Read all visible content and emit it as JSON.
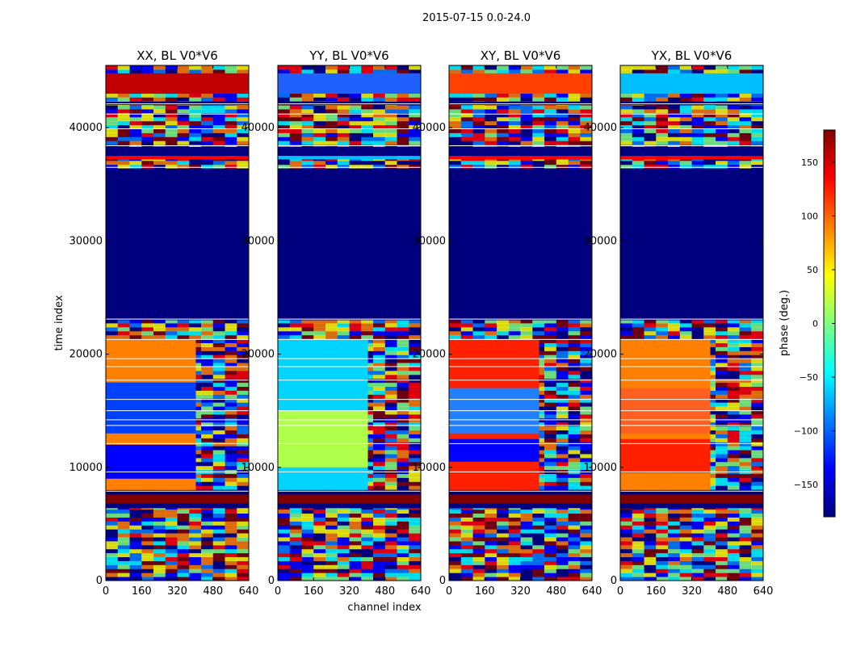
{
  "chart_data": {
    "type": "heatmap",
    "title": "2015-07-15 0.0-24.0",
    "xlabel": "channel index",
    "ylabel": "time index",
    "xlim": [
      0,
      640
    ],
    "ylim": [
      0,
      45500
    ],
    "x_ticks": [
      0,
      160,
      320,
      480,
      640
    ],
    "y_ticks": [
      0,
      10000,
      20000,
      30000,
      40000
    ],
    "colorbar": {
      "label": "phase (deg.)",
      "range": [
        -180,
        180
      ],
      "ticks": [
        150,
        100,
        50,
        0,
        -50,
        -100,
        -150
      ],
      "tick_labels": [
        "150",
        "100",
        "50",
        "0",
        "−50",
        "−100",
        "−150"
      ],
      "colormap": [
        "#00007f",
        "#0000ff",
        "#007fff",
        "#00ffff",
        "#7fff7f",
        "#ffff00",
        "#ff7f00",
        "#ff0000",
        "#7f0000"
      ]
    },
    "panels": [
      {
        "name": "XX, BL V0*V6",
        "fill_color": "#00007f",
        "bands": [
          {
            "y0": 23000,
            "y1": 36400,
            "color": "#00007f"
          },
          {
            "y0": 6800,
            "y1": 7600,
            "color": "#7f0000"
          },
          {
            "y0": 6400,
            "y1": 6800,
            "color": "#00007f"
          },
          {
            "y0": 7600,
            "y1": 8000,
            "color": "#00007f"
          },
          {
            "y0": 42000,
            "y1": 42300,
            "color": "#00007f"
          },
          {
            "y0": 37500,
            "y1": 38300,
            "color": "#00007f"
          },
          {
            "y0": 8000,
            "y1": 21300,
            "color": "#ff7f00"
          },
          {
            "y0": 13000,
            "y1": 17500,
            "color": "#0040ff"
          },
          {
            "y0": 9000,
            "y1": 12000,
            "color": "#0000ff"
          },
          {
            "y0": 43000,
            "y1": 44800,
            "color": "#c00000"
          },
          {
            "y0": 37200,
            "y1": 37500,
            "color": "#ff0000"
          }
        ]
      },
      {
        "name": "YY, BL V0*V6",
        "fill_color": "#00007f",
        "bands": [
          {
            "y0": 23000,
            "y1": 36400,
            "color": "#00007f"
          },
          {
            "y0": 6800,
            "y1": 7600,
            "color": "#7f0000"
          },
          {
            "y0": 6400,
            "y1": 6800,
            "color": "#00007f"
          },
          {
            "y0": 7600,
            "y1": 8000,
            "color": "#00007f"
          },
          {
            "y0": 42000,
            "y1": 42300,
            "color": "#00007f"
          },
          {
            "y0": 37500,
            "y1": 38300,
            "color": "#00007f"
          },
          {
            "y0": 8000,
            "y1": 21300,
            "color": "#00d4ff"
          },
          {
            "y0": 10000,
            "y1": 15000,
            "color": "#b0ff4a"
          },
          {
            "y0": 43000,
            "y1": 44800,
            "color": "#2060ff"
          },
          {
            "y0": 37200,
            "y1": 37500,
            "color": "#00bfff"
          }
        ]
      },
      {
        "name": "XY, BL V0*V6",
        "fill_color": "#00007f",
        "bands": [
          {
            "y0": 23000,
            "y1": 36400,
            "color": "#00007f"
          },
          {
            "y0": 6800,
            "y1": 7600,
            "color": "#7f0000"
          },
          {
            "y0": 6400,
            "y1": 6800,
            "color": "#00007f"
          },
          {
            "y0": 7600,
            "y1": 8000,
            "color": "#00007f"
          },
          {
            "y0": 42000,
            "y1": 42300,
            "color": "#00007f"
          },
          {
            "y0": 37500,
            "y1": 38300,
            "color": "#00007f"
          },
          {
            "y0": 8000,
            "y1": 21300,
            "color": "#ff2000"
          },
          {
            "y0": 10500,
            "y1": 12500,
            "color": "#0000ff"
          },
          {
            "y0": 13000,
            "y1": 17000,
            "color": "#2080ff"
          },
          {
            "y0": 43000,
            "y1": 44800,
            "color": "#ff4000"
          },
          {
            "y0": 37200,
            "y1": 37500,
            "color": "#ff0000"
          }
        ]
      },
      {
        "name": "YX, BL V0*V6",
        "fill_color": "#00007f",
        "bands": [
          {
            "y0": 23000,
            "y1": 36400,
            "color": "#00007f"
          },
          {
            "y0": 6800,
            "y1": 7600,
            "color": "#7f0000"
          },
          {
            "y0": 6400,
            "y1": 6800,
            "color": "#00007f"
          },
          {
            "y0": 7600,
            "y1": 8000,
            "color": "#00007f"
          },
          {
            "y0": 42000,
            "y1": 42300,
            "color": "#00007f"
          },
          {
            "y0": 37500,
            "y1": 38300,
            "color": "#00007f"
          },
          {
            "y0": 8000,
            "y1": 21300,
            "color": "#ff8000"
          },
          {
            "y0": 9500,
            "y1": 12500,
            "color": "#ff2000"
          },
          {
            "y0": 13000,
            "y1": 17000,
            "color": "#ff6020"
          },
          {
            "y0": 43000,
            "y1": 44800,
            "color": "#00bfff"
          },
          {
            "y0": 37200,
            "y1": 37500,
            "color": "#ff0000"
          }
        ]
      }
    ]
  }
}
